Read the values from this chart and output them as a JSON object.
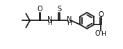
{
  "bg_color": "#ffffff",
  "line_color": "#1a1a1a",
  "line_width": 1.3,
  "font_size_label": 6.5,
  "figsize": [
    1.77,
    0.7
  ],
  "dpi": 100,
  "xlim": [
    0,
    9.5
  ],
  "ylim": [
    -0.5,
    3.8
  ]
}
